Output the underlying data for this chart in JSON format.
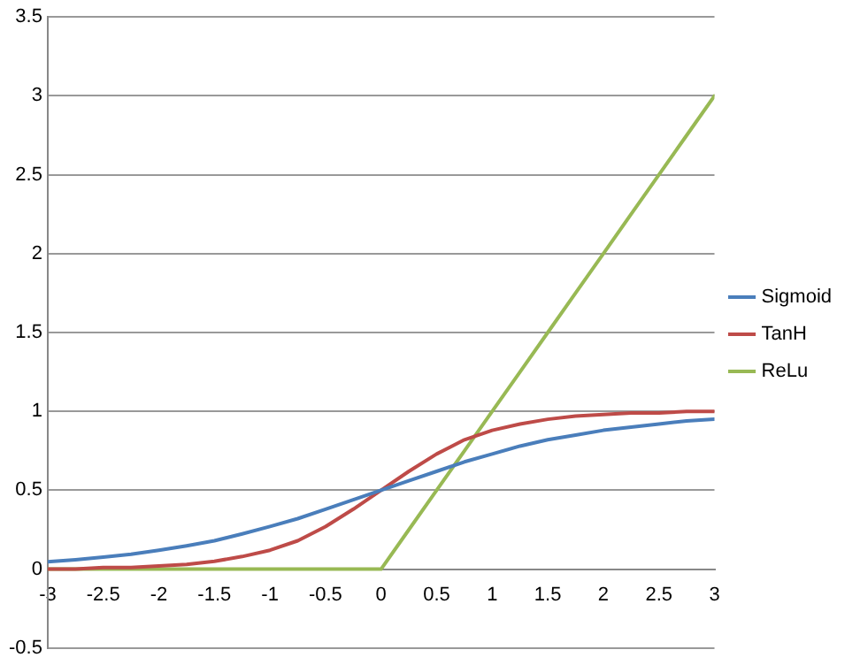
{
  "chart_data": {
    "type": "line",
    "x": [
      -3,
      -2.75,
      -2.5,
      -2.25,
      -2,
      -1.75,
      -1.5,
      -1.25,
      -1,
      -0.75,
      -0.5,
      -0.25,
      0,
      0.25,
      0.5,
      0.75,
      1,
      1.25,
      1.5,
      1.75,
      2,
      2.25,
      2.5,
      2.75,
      3
    ],
    "series": [
      {
        "name": "Sigmoid",
        "color": "#4a7ebb",
        "values": [
          0.047,
          0.06,
          0.076,
          0.095,
          0.12,
          0.148,
          0.18,
          0.223,
          0.27,
          0.32,
          0.38,
          0.44,
          0.5,
          0.56,
          0.62,
          0.68,
          0.73,
          0.78,
          0.82,
          0.85,
          0.88,
          0.9,
          0.92,
          0.94,
          0.95
        ]
      },
      {
        "name": "TanH",
        "color": "#be4b48",
        "values": [
          0,
          0,
          0.01,
          0.01,
          0.02,
          0.03,
          0.05,
          0.08,
          0.12,
          0.18,
          0.27,
          0.38,
          0.5,
          0.62,
          0.73,
          0.82,
          0.88,
          0.92,
          0.95,
          0.97,
          0.98,
          0.99,
          0.99,
          1,
          1
        ]
      },
      {
        "name": "ReLu",
        "color": "#98b954",
        "values": [
          0,
          0,
          0,
          0,
          0,
          0,
          0,
          0,
          0,
          0,
          0,
          0,
          0,
          0.25,
          0.5,
          0.75,
          1,
          1.25,
          1.5,
          1.75,
          2,
          2.25,
          2.5,
          2.75,
          3
        ]
      }
    ],
    "xlim": [
      -3,
      3
    ],
    "xticks": [
      -3,
      -2.5,
      -2,
      -1.5,
      -1,
      -0.5,
      0,
      0.5,
      1,
      1.5,
      2,
      2.5,
      3
    ],
    "ylim": [
      -0.5,
      3.5
    ],
    "yticks": [
      -0.5,
      0,
      0.5,
      1,
      1.5,
      2,
      2.5,
      3,
      3.5
    ],
    "grid": "y",
    "legend": "right",
    "marker": "none",
    "line_style": "solid"
  }
}
